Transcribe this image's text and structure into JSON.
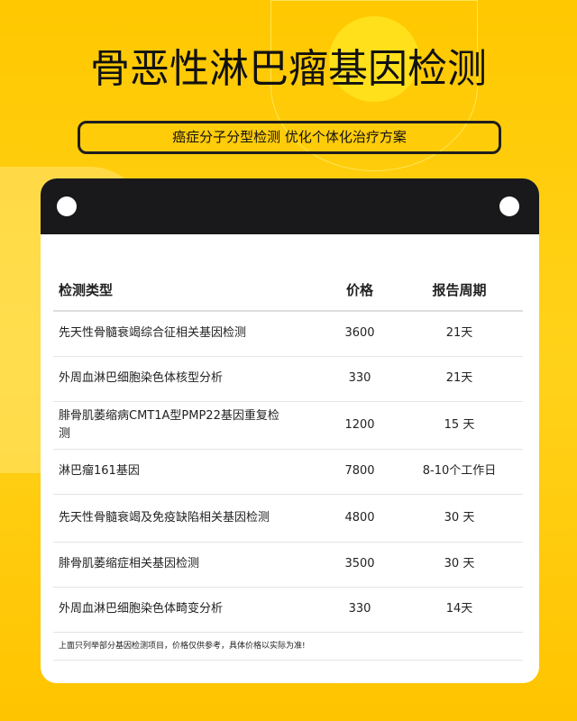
{
  "title": "骨恶性淋巴瘤基因检测",
  "subtitle": "癌症分子分型检测 优化个体化治疗方案",
  "table": {
    "headers": [
      "检测类型",
      "价格",
      "报告周期"
    ],
    "rows": [
      {
        "name": "先天性骨髓衰竭综合征相关基因检测",
        "price": "3600",
        "period": "21天"
      },
      {
        "name": "外周血淋巴细胞染色体核型分析",
        "price": "330",
        "period": "21天"
      },
      {
        "name": "腓骨肌萎缩病CMT1A型PMP22基因重复检测",
        "price": "1200",
        "period": "15 天"
      },
      {
        "name": "淋巴瘤161基因",
        "price": "7800",
        "period": "8-10个工作日"
      },
      {
        "name": "先天性骨髓衰竭及免疫缺陷相关基因检测",
        "price": "4800",
        "period": "30 天"
      },
      {
        "name": "腓骨肌萎缩症相关基因检测",
        "price": "3500",
        "period": "30 天"
      },
      {
        "name": "外周血淋巴细胞染色体畸变分析",
        "price": "330",
        "period": "14天"
      }
    ],
    "note": "上面只列举部分基因检测项目，价格仅供参考，具体价格以实际为准!"
  },
  "colors": {
    "background": "#ffc800",
    "card_header": "#19191b"
  }
}
